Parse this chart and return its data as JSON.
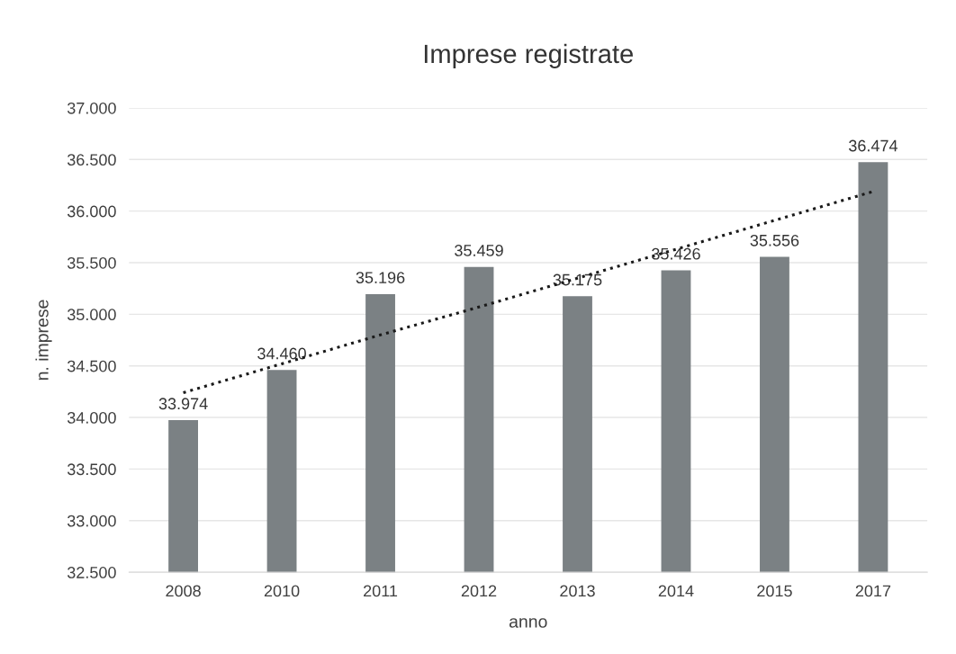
{
  "chart_data": {
    "type": "bar",
    "title": "Imprese registrate",
    "xlabel": "anno",
    "ylabel": "n. imprese",
    "categories": [
      "2008",
      "2010",
      "2011",
      "2012",
      "2013",
      "2014",
      "2015",
      "2017"
    ],
    "series": [
      {
        "color": "#7b8184",
        "values": [
          33974,
          34460,
          35196,
          35459,
          35175,
          35426,
          35556,
          36474
        ],
        "value_labels": [
          "33.974",
          "34.460",
          "35.196",
          "35.459",
          "35.175",
          "35.426",
          "35.556",
          "36.474"
        ]
      },
      {
        "type": "line",
        "color": "#1a1a1a",
        "line_style": "dotted",
        "values": [
          34240,
          34520,
          34800,
          35070,
          35350,
          35630,
          35910,
          36190
        ]
      }
    ],
    "ylim": [
      32500,
      37000
    ],
    "yticks": [
      {
        "value": 32500,
        "label": "32.500"
      },
      {
        "value": 33000,
        "label": "33.000"
      },
      {
        "value": 33500,
        "label": "33.500"
      },
      {
        "value": 34000,
        "label": "34.000"
      },
      {
        "value": 34500,
        "label": "34.500"
      },
      {
        "value": 35000,
        "label": "35.000"
      },
      {
        "value": 35500,
        "label": "35.500"
      },
      {
        "value": 36000,
        "label": "36.000"
      },
      {
        "value": 36500,
        "label": "36.500"
      },
      {
        "value": 37000,
        "label": "37.000"
      }
    ],
    "grid": "y",
    "legend": false
  }
}
